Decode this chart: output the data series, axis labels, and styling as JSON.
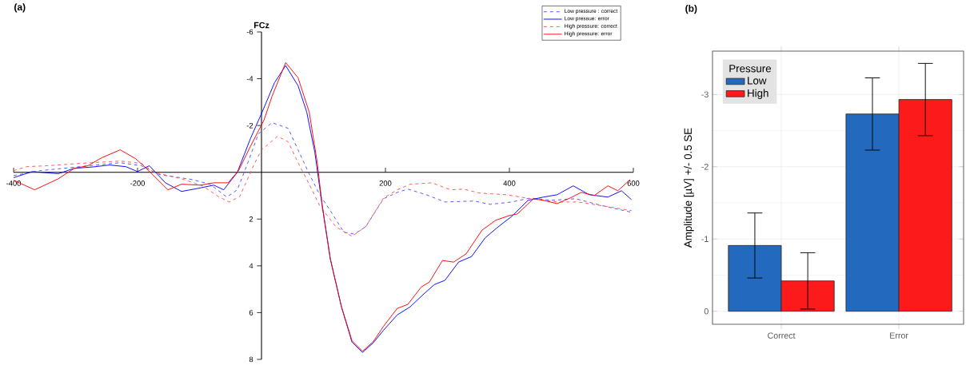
{
  "chart_data": [
    {
      "type": "line",
      "title": "(a)",
      "ylabel": "FCz",
      "xlim": [
        -400,
        600
      ],
      "ylim": [
        8,
        -6
      ],
      "xticks": [
        -400,
        -200,
        200,
        400,
        600
      ],
      "yticks": [
        -6,
        -4,
        -2,
        2,
        4,
        6,
        8
      ],
      "legend": "top right",
      "series": [
        {
          "name": "Low pressure : correct",
          "color": "#4d4dff",
          "line_style": "dashed",
          "x": [
            -400,
            -357,
            -293,
            -228,
            -194,
            -164,
            -112,
            -83,
            -56,
            -39,
            -22,
            -5,
            17,
            43,
            59,
            77,
            94,
            111,
            133,
            150,
            168,
            197,
            219,
            236,
            266,
            296,
            343,
            369,
            404,
            434,
            468,
            507,
            550,
            597
          ],
          "values": [
            0.14,
            -0.07,
            -0.24,
            -0.41,
            -0.28,
            0.1,
            0.31,
            0.51,
            1.06,
            0.75,
            -0.41,
            -1.64,
            -2.12,
            -1.88,
            -0.96,
            0.07,
            0.96,
            1.64,
            2.57,
            2.64,
            2.33,
            1.13,
            0.86,
            0.72,
            0.96,
            1.27,
            1.23,
            1.37,
            1.27,
            1.1,
            1.2,
            1.13,
            1.43,
            1.71
          ]
        },
        {
          "name": "Low pressue: error",
          "color": "#0000ff",
          "line_style": "solid",
          "x": [
            -400,
            -370,
            -328,
            -302,
            -271,
            -245,
            -219,
            -200,
            -181,
            -155,
            -129,
            -103,
            -77,
            -61,
            -39,
            -18,
            1,
            21,
            39,
            59,
            73,
            86,
            98,
            111,
            129,
            146,
            163,
            180,
            197,
            219,
            240,
            262,
            279,
            296,
            318,
            339,
            361,
            382,
            404,
            430,
            455,
            477,
            503,
            529,
            559,
            581,
            597
          ],
          "values": [
            0.23,
            -0.03,
            0.06,
            -0.17,
            -0.23,
            -0.31,
            -0.24,
            -0.03,
            -0.28,
            0.45,
            0.82,
            0.69,
            0.55,
            0.75,
            0,
            -1.43,
            -2.57,
            -3.83,
            -4.56,
            -3.7,
            -2.57,
            -0.86,
            1.43,
            3.7,
            5.75,
            7.26,
            7.7,
            7.3,
            6.75,
            6.1,
            5.75,
            5.2,
            4.8,
            4.62,
            3.84,
            3.6,
            2.8,
            2.33,
            1.88,
            1.2,
            1.06,
            0.96,
            0.58,
            0.96,
            1.06,
            0.79,
            1.17
          ]
        },
        {
          "name": "High pressure: correct",
          "color": "#ff4d4d",
          "line_style": "dashed",
          "x": [
            -400,
            -379,
            -345,
            -293,
            -228,
            -194,
            -173,
            -129,
            -95,
            -70,
            -52,
            -35,
            -13,
            0,
            26,
            43,
            59,
            77,
            94,
            120,
            146,
            168,
            197,
            219,
            240,
            275,
            305,
            326,
            352,
            395,
            434,
            477,
            511,
            559,
            597
          ],
          "values": [
            -0.07,
            -0.24,
            -0.28,
            -0.38,
            -0.48,
            -0.38,
            0,
            0.28,
            0.58,
            1.03,
            1.27,
            1.03,
            -0.28,
            -0.96,
            -1.54,
            -1.3,
            -0.41,
            0.51,
            1.43,
            2.33,
            2.74,
            2.33,
            1.1,
            0.75,
            0.51,
            0.45,
            0.75,
            0.72,
            0.89,
            0.96,
            1.13,
            1.27,
            1.27,
            1.47,
            1.64
          ]
        },
        {
          "name": "High pressure: error",
          "color": "#ff0000",
          "line_style": "solid",
          "x": [
            -400,
            -366,
            -328,
            -302,
            -280,
            -258,
            -228,
            -203,
            -186,
            -151,
            -129,
            -99,
            -77,
            -54,
            -37,
            -18,
            4,
            17,
            39,
            59,
            77,
            90,
            98,
            111,
            129,
            146,
            163,
            180,
            197,
            219,
            236,
            258,
            271,
            292,
            310,
            330,
            356,
            378,
            400,
            413,
            439,
            455,
            477,
            498,
            516,
            537,
            559,
            575,
            595
          ],
          "values": [
            0.34,
            0.75,
            0.28,
            -0.17,
            -0.28,
            -0.62,
            -0.96,
            -0.58,
            -0.17,
            0.75,
            0.51,
            0.55,
            0.45,
            0.45,
            -0.07,
            -1.1,
            -2.23,
            -3.25,
            -4.69,
            -4.04,
            -2.57,
            -0.41,
            1.43,
            3.7,
            5.75,
            7.2,
            7.65,
            7.25,
            6.58,
            5.82,
            5.65,
            4.9,
            4.69,
            3.77,
            3.84,
            3.49,
            2.47,
            2.05,
            1.85,
            1.78,
            1.13,
            1.2,
            1.34,
            1.1,
            0.86,
            0.99,
            0.58,
            0.79,
            0.31
          ]
        }
      ]
    },
    {
      "type": "bar",
      "title": "(b)",
      "ylabel": "Amplitude [µV] +/- 0.5 SE",
      "categories": [
        "Correct",
        "Error"
      ],
      "ylim": [
        0.18,
        -3.6
      ],
      "yticks": [
        -3,
        -2,
        -1,
        0
      ],
      "grid": true,
      "legend": "top left",
      "legend_title": "Pressure",
      "series": [
        {
          "name": "Low",
          "color": "#2369bd",
          "values": [
            -0.91,
            -2.73
          ],
          "errors": [
            0.45,
            0.5
          ]
        },
        {
          "name": "High",
          "color": "#fc1a1a",
          "values": [
            -0.42,
            -2.93
          ],
          "errors": [
            0.39,
            0.5
          ]
        }
      ]
    }
  ]
}
